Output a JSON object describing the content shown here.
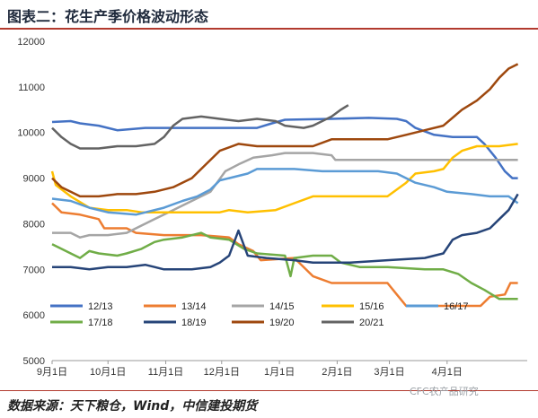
{
  "header": {
    "title": "图表二：花生产季价格波动形态"
  },
  "footer": {
    "source": "数据来源：天下粮仓，Wind，中信建投期货",
    "watermark": "CFC农产品研究"
  },
  "chart_data": {
    "type": "line",
    "title": "",
    "xlabel": "",
    "ylabel": "",
    "ylim": [
      5000,
      12000
    ],
    "yticks": [
      5000,
      6000,
      7000,
      8000,
      9000,
      10000,
      11000,
      12000
    ],
    "xlim": [
      0,
      255
    ],
    "xticks": [
      {
        "label": "9月1日",
        "x": 0
      },
      {
        "label": "10月1日",
        "x": 30
      },
      {
        "label": "11月1日",
        "x": 61
      },
      {
        "label": "12月1日",
        "x": 91
      },
      {
        "label": "1月1日",
        "x": 122
      },
      {
        "label": "2月1日",
        "x": 153
      },
      {
        "label": "3月1日",
        "x": 181
      },
      {
        "label": "4月1日",
        "x": 212
      }
    ],
    "grid": false,
    "legend_position": "bottom",
    "series": [
      {
        "name": "12/13",
        "color": "#4472c4",
        "points": [
          [
            0,
            10230
          ],
          [
            10,
            10250
          ],
          [
            15,
            10200
          ],
          [
            25,
            10150
          ],
          [
            35,
            10050
          ],
          [
            50,
            10100
          ],
          [
            70,
            10100
          ],
          [
            90,
            10100
          ],
          [
            110,
            10100
          ],
          [
            118,
            10200
          ],
          [
            125,
            10280
          ],
          [
            150,
            10300
          ],
          [
            170,
            10320
          ],
          [
            185,
            10300
          ],
          [
            190,
            10250
          ],
          [
            195,
            10100
          ],
          [
            205,
            9950
          ],
          [
            215,
            9900
          ],
          [
            228,
            9900
          ],
          [
            232,
            9750
          ],
          [
            238,
            9450
          ],
          [
            243,
            9150
          ],
          [
            247,
            9000
          ],
          [
            250,
            9000
          ]
        ]
      },
      {
        "name": "13/14",
        "color": "#ed7d31",
        "points": [
          [
            0,
            8450
          ],
          [
            5,
            8250
          ],
          [
            15,
            8200
          ],
          [
            25,
            8100
          ],
          [
            28,
            7900
          ],
          [
            40,
            7900
          ],
          [
            45,
            7800
          ],
          [
            60,
            7750
          ],
          [
            80,
            7750
          ],
          [
            95,
            7700
          ],
          [
            100,
            7550
          ],
          [
            108,
            7400
          ],
          [
            112,
            7200
          ],
          [
            130,
            7250
          ],
          [
            140,
            6850
          ],
          [
            150,
            6700
          ],
          [
            165,
            6700
          ],
          [
            180,
            6700
          ],
          [
            185,
            6450
          ],
          [
            190,
            6200
          ],
          [
            200,
            6200
          ],
          [
            230,
            6200
          ],
          [
            235,
            6400
          ],
          [
            243,
            6450
          ],
          [
            246,
            6700
          ],
          [
            250,
            6700
          ]
        ]
      },
      {
        "name": "14/15",
        "color": "#a5a5a5",
        "points": [
          [
            0,
            7800
          ],
          [
            10,
            7800
          ],
          [
            15,
            7700
          ],
          [
            20,
            7750
          ],
          [
            30,
            7750
          ],
          [
            40,
            7800
          ],
          [
            45,
            7900
          ],
          [
            55,
            8100
          ],
          [
            65,
            8300
          ],
          [
            75,
            8500
          ],
          [
            85,
            8700
          ],
          [
            93,
            9150
          ],
          [
            100,
            9300
          ],
          [
            108,
            9450
          ],
          [
            118,
            9500
          ],
          [
            125,
            9550
          ],
          [
            140,
            9550
          ],
          [
            150,
            9500
          ],
          [
            152,
            9400
          ],
          [
            180,
            9400
          ],
          [
            210,
            9400
          ],
          [
            240,
            9400
          ],
          [
            250,
            9400
          ]
        ]
      },
      {
        "name": "15/16",
        "color": "#ffc000",
        "points": [
          [
            0,
            9150
          ],
          [
            2,
            8850
          ],
          [
            10,
            8600
          ],
          [
            20,
            8350
          ],
          [
            30,
            8300
          ],
          [
            40,
            8300
          ],
          [
            48,
            8250
          ],
          [
            60,
            8250
          ],
          [
            75,
            8250
          ],
          [
            85,
            8250
          ],
          [
            90,
            8250
          ],
          [
            95,
            8300
          ],
          [
            105,
            8250
          ],
          [
            120,
            8300
          ],
          [
            130,
            8450
          ],
          [
            140,
            8600
          ],
          [
            160,
            8600
          ],
          [
            180,
            8600
          ],
          [
            190,
            8900
          ],
          [
            195,
            9100
          ],
          [
            205,
            9150
          ],
          [
            210,
            9200
          ],
          [
            215,
            9450
          ],
          [
            220,
            9600
          ],
          [
            228,
            9700
          ],
          [
            240,
            9700
          ],
          [
            250,
            9750
          ]
        ]
      },
      {
        "name": "16/17",
        "color": "#5b9bd5",
        "points": [
          [
            0,
            8550
          ],
          [
            10,
            8500
          ],
          [
            20,
            8350
          ],
          [
            30,
            8250
          ],
          [
            45,
            8200
          ],
          [
            60,
            8350
          ],
          [
            70,
            8500
          ],
          [
            78,
            8600
          ],
          [
            85,
            8750
          ],
          [
            90,
            8950
          ],
          [
            95,
            9000
          ],
          [
            105,
            9100
          ],
          [
            110,
            9200
          ],
          [
            130,
            9200
          ],
          [
            145,
            9150
          ],
          [
            160,
            9150
          ],
          [
            175,
            9150
          ],
          [
            185,
            9100
          ],
          [
            195,
            8900
          ],
          [
            205,
            8800
          ],
          [
            212,
            8700
          ],
          [
            225,
            8650
          ],
          [
            235,
            8600
          ],
          [
            245,
            8600
          ],
          [
            250,
            8450
          ]
        ]
      },
      {
        "name": "17/18",
        "color": "#70ad47",
        "points": [
          [
            0,
            7550
          ],
          [
            5,
            7450
          ],
          [
            10,
            7350
          ],
          [
            15,
            7250
          ],
          [
            20,
            7400
          ],
          [
            25,
            7350
          ],
          [
            35,
            7300
          ],
          [
            40,
            7350
          ],
          [
            48,
            7450
          ],
          [
            55,
            7600
          ],
          [
            60,
            7650
          ],
          [
            70,
            7700
          ],
          [
            80,
            7800
          ],
          [
            85,
            7700
          ],
          [
            95,
            7650
          ],
          [
            103,
            7450
          ],
          [
            110,
            7350
          ],
          [
            125,
            7300
          ],
          [
            128,
            6850
          ],
          [
            130,
            7250
          ],
          [
            140,
            7300
          ],
          [
            150,
            7300
          ],
          [
            155,
            7150
          ],
          [
            160,
            7100
          ],
          [
            165,
            7050
          ],
          [
            180,
            7050
          ],
          [
            200,
            7000
          ],
          [
            210,
            7000
          ],
          [
            218,
            6900
          ],
          [
            225,
            6700
          ],
          [
            232,
            6550
          ],
          [
            240,
            6350
          ],
          [
            250,
            6350
          ]
        ]
      },
      {
        "name": "18/19",
        "color": "#264478",
        "points": [
          [
            0,
            7050
          ],
          [
            10,
            7050
          ],
          [
            20,
            7000
          ],
          [
            30,
            7050
          ],
          [
            40,
            7050
          ],
          [
            50,
            7100
          ],
          [
            55,
            7050
          ],
          [
            60,
            7000
          ],
          [
            75,
            7000
          ],
          [
            85,
            7050
          ],
          [
            90,
            7150
          ],
          [
            95,
            7300
          ],
          [
            100,
            7850
          ],
          [
            105,
            7300
          ],
          [
            115,
            7250
          ],
          [
            130,
            7200
          ],
          [
            140,
            7150
          ],
          [
            160,
            7150
          ],
          [
            180,
            7200
          ],
          [
            200,
            7250
          ],
          [
            210,
            7350
          ],
          [
            215,
            7650
          ],
          [
            220,
            7750
          ],
          [
            228,
            7800
          ],
          [
            235,
            7900
          ],
          [
            240,
            8100
          ],
          [
            245,
            8300
          ],
          [
            250,
            8650
          ]
        ]
      },
      {
        "name": "19/20",
        "color": "#9e480e",
        "points": [
          [
            0,
            9000
          ],
          [
            5,
            8800
          ],
          [
            10,
            8700
          ],
          [
            15,
            8600
          ],
          [
            25,
            8600
          ],
          [
            35,
            8650
          ],
          [
            45,
            8650
          ],
          [
            55,
            8700
          ],
          [
            65,
            8800
          ],
          [
            75,
            9000
          ],
          [
            80,
            9200
          ],
          [
            90,
            9600
          ],
          [
            100,
            9750
          ],
          [
            110,
            9700
          ],
          [
            125,
            9700
          ],
          [
            140,
            9700
          ],
          [
            150,
            9850
          ],
          [
            165,
            9850
          ],
          [
            180,
            9850
          ],
          [
            190,
            9950
          ],
          [
            200,
            10050
          ],
          [
            210,
            10150
          ],
          [
            220,
            10500
          ],
          [
            228,
            10700
          ],
          [
            235,
            10950
          ],
          [
            240,
            11200
          ],
          [
            245,
            11400
          ],
          [
            250,
            11500
          ]
        ]
      },
      {
        "name": "20/21",
        "color": "#636363",
        "points": [
          [
            0,
            10100
          ],
          [
            5,
            9900
          ],
          [
            10,
            9750
          ],
          [
            15,
            9650
          ],
          [
            25,
            9650
          ],
          [
            35,
            9700
          ],
          [
            45,
            9700
          ],
          [
            55,
            9750
          ],
          [
            60,
            9900
          ],
          [
            65,
            10150
          ],
          [
            70,
            10300
          ],
          [
            80,
            10350
          ],
          [
            90,
            10300
          ],
          [
            100,
            10250
          ],
          [
            110,
            10300
          ],
          [
            120,
            10250
          ],
          [
            125,
            10150
          ],
          [
            135,
            10100
          ],
          [
            140,
            10150
          ],
          [
            145,
            10250
          ],
          [
            150,
            10350
          ],
          [
            155,
            10500
          ],
          [
            159,
            10600
          ]
        ]
      }
    ]
  }
}
